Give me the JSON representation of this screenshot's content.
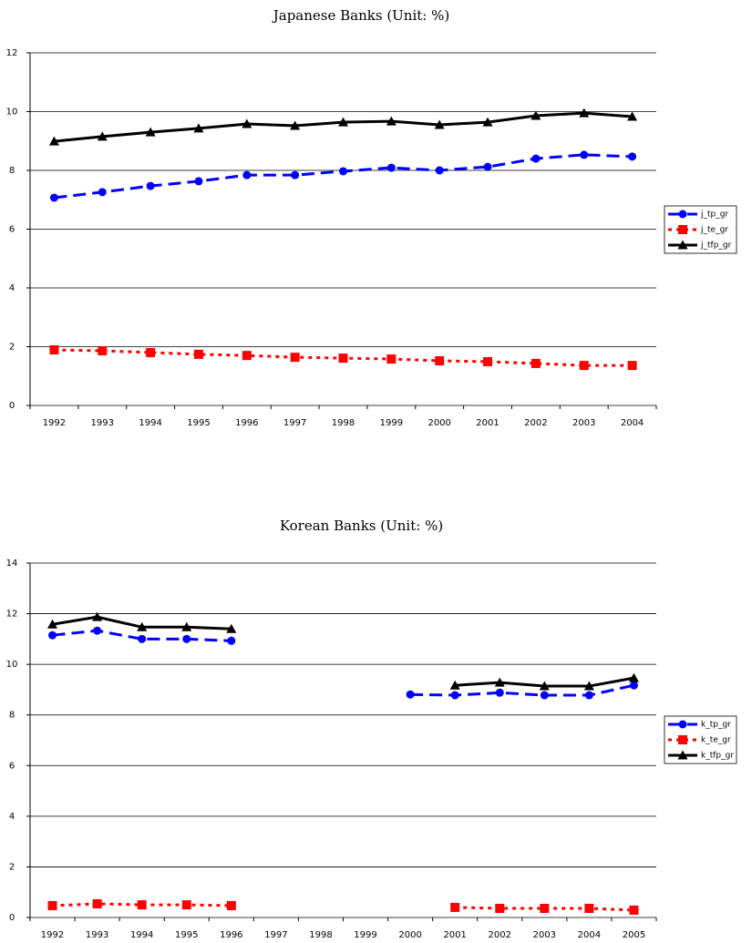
{
  "chart_data": [
    {
      "type": "line",
      "title": "Japanese Banks (Unit: %)",
      "categories": [
        "1992",
        "1993",
        "1994",
        "1995",
        "1996",
        "1997",
        "1998",
        "1999",
        "2000",
        "2001",
        "2002",
        "2003",
        "2004"
      ],
      "ylim": [
        0,
        12
      ],
      "yticks": [
        0,
        2,
        4,
        6,
        8,
        10,
        12
      ],
      "grid": true,
      "legend": "right",
      "series": [
        {
          "name": "j_tp_gr",
          "color": "#0000ff",
          "marker": "circle",
          "dash": "long",
          "values": [
            7.07,
            7.26,
            7.47,
            7.63,
            7.84,
            7.84,
            7.97,
            8.09,
            8.0,
            8.12,
            8.4,
            8.53,
            8.47
          ]
        },
        {
          "name": "j_te_gr",
          "color": "#ff0000",
          "marker": "square",
          "dash": "dot",
          "values": [
            1.89,
            1.86,
            1.8,
            1.74,
            1.7,
            1.64,
            1.61,
            1.58,
            1.52,
            1.49,
            1.43,
            1.36,
            1.36
          ]
        },
        {
          "name": "j_tfp_gr",
          "color": "#000000",
          "marker": "triangle",
          "dash": "solid",
          "values": [
            8.99,
            9.15,
            9.3,
            9.43,
            9.58,
            9.52,
            9.64,
            9.67,
            9.55,
            9.64,
            9.86,
            9.95,
            9.83
          ]
        }
      ]
    },
    {
      "type": "line",
      "title": "Korean Banks (Unit: %)",
      "categories": [
        "1992",
        "1993",
        "1994",
        "1995",
        "1996",
        "1997",
        "1998",
        "1999",
        "2000",
        "2001",
        "2002",
        "2003",
        "2004",
        "2005"
      ],
      "ylim": [
        0,
        14
      ],
      "yticks": [
        0,
        2,
        4,
        6,
        8,
        10,
        12,
        14
      ],
      "grid": true,
      "legend": "right",
      "series": [
        {
          "name": "k_tp_gr",
          "color": "#0000ff",
          "marker": "circle",
          "dash": "long",
          "values": [
            11.15,
            11.33,
            11.0,
            11.0,
            10.93,
            null,
            null,
            null,
            8.81,
            8.78,
            8.88,
            8.78,
            8.78,
            9.17
          ]
        },
        {
          "name": "k_te_gr",
          "color": "#ff0000",
          "marker": "square",
          "dash": "dot",
          "values": [
            0.47,
            0.54,
            0.5,
            0.5,
            0.47,
            null,
            null,
            null,
            null,
            0.4,
            0.36,
            0.36,
            0.36,
            0.29
          ]
        },
        {
          "name": "k_tfp_gr",
          "color": "#000000",
          "marker": "triangle",
          "dash": "solid",
          "values": [
            11.58,
            11.87,
            11.47,
            11.47,
            11.4,
            null,
            null,
            null,
            null,
            9.17,
            9.28,
            9.14,
            9.14,
            9.46
          ]
        }
      ]
    }
  ]
}
